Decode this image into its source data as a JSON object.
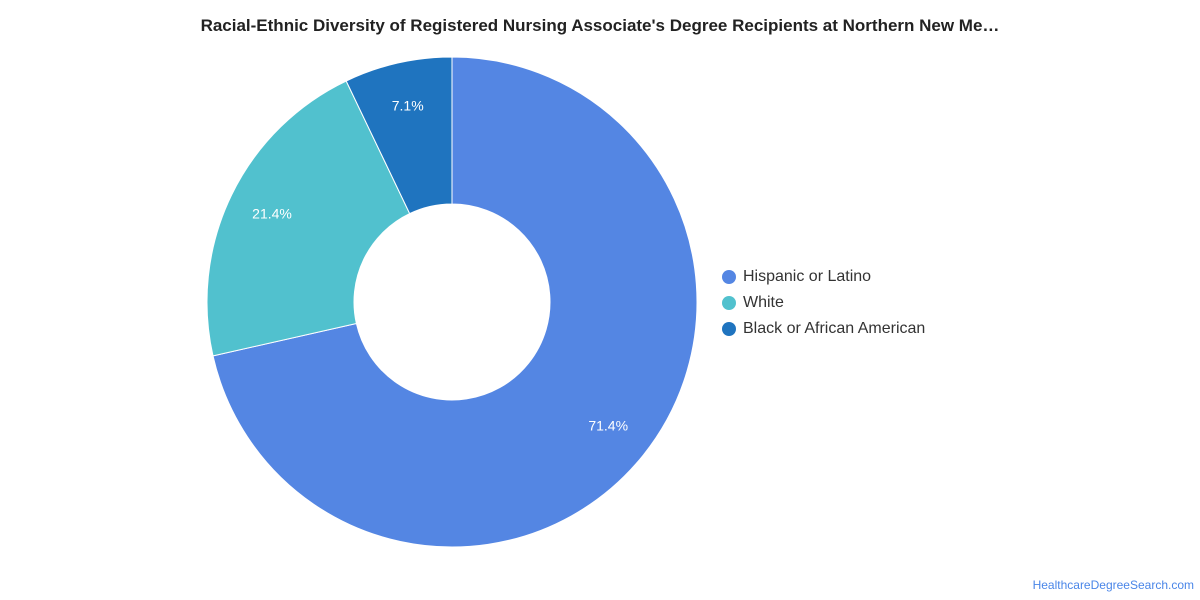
{
  "chart_data": {
    "type": "pie",
    "title": "Racial-Ethnic Diversity of Registered Nursing Associate's Degree Recipients at Northern New Me…",
    "donut": true,
    "slices": [
      {
        "name": "Hispanic or Latino",
        "value": 71.4,
        "label": "71.4%",
        "color": "#5486e3"
      },
      {
        "name": "White",
        "value": 21.4,
        "label": "21.4%",
        "color": "#51c1ce"
      },
      {
        "name": "Black or African American",
        "value": 7.1,
        "label": "7.1%",
        "color": "#1f74bf"
      }
    ],
    "legend_position": "right"
  },
  "watermark": "HealthcareDegreeSearch.com"
}
